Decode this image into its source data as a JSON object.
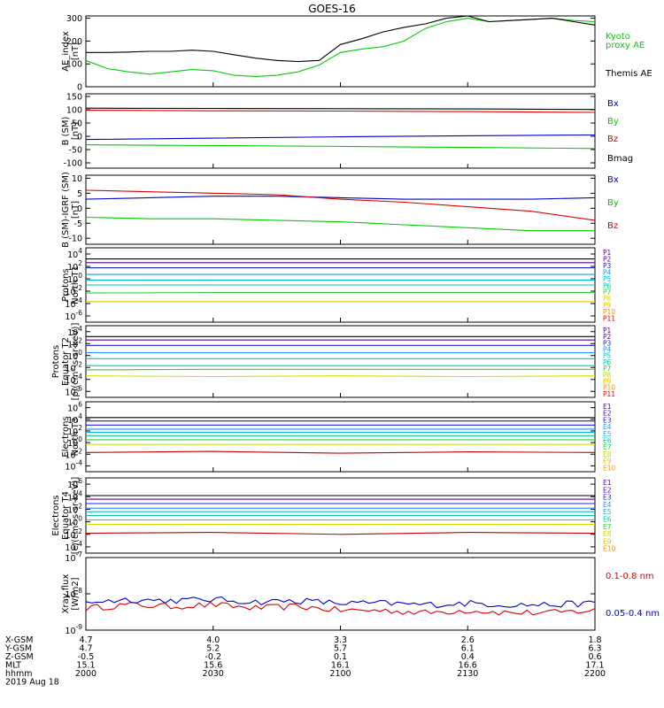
{
  "title": "GOES-16",
  "colors": {
    "black": "#000000",
    "blue": "#0000cc",
    "green": "#00cc00",
    "red": "#dd0000",
    "channels": [
      "#4b0082",
      "#5a0096",
      "#2020d0",
      "#1e90ff",
      "#00bcd4",
      "#00c8a0",
      "#32cd32",
      "#c8e000",
      "#e0c000",
      "#ff8c00",
      "#dd0000"
    ]
  },
  "panels": [
    {
      "id": "ae",
      "ylabel": [
        "AE_index",
        "[nT]"
      ],
      "yticks": [
        "300",
        "200",
        "100",
        "0"
      ],
      "legend": [
        {
          "text": "Kyoto",
          "color": "#00cc00"
        },
        {
          "text": "proxy AE",
          "color": "#00cc00"
        },
        {
          "text": "Themis AE",
          "color": "#000000"
        }
      ]
    },
    {
      "id": "bsm",
      "ylabel": [
        "B (SM)",
        "[nT]"
      ],
      "yticks": [
        "150",
        "100",
        "50",
        "0",
        "-50",
        "-100"
      ],
      "legend": [
        {
          "text": "Bx",
          "color": "#0000cc"
        },
        {
          "text": "By",
          "color": "#00cc00"
        },
        {
          "text": "Bz",
          "color": "#dd0000"
        },
        {
          "text": "Bmag",
          "color": "#000000"
        }
      ]
    },
    {
      "id": "bigrf",
      "ylabel": [
        "B (SM)-IGRF (SM)",
        "[nT]"
      ],
      "yticks": [
        "10",
        "5",
        "0",
        "-5",
        "-10"
      ],
      "legend": [
        {
          "text": "Bx",
          "color": "#0000cc"
        },
        {
          "text": "By",
          "color": "#00cc00"
        },
        {
          "text": "Bz",
          "color": "#dd0000"
        }
      ]
    },
    {
      "id": "pt1",
      "ylabel": [
        "Protons",
        "North T1"
      ],
      "ymant": [
        "10",
        "10",
        "10",
        "10",
        "10",
        "10"
      ],
      "yexp": [
        "4",
        "2",
        "0",
        "-2",
        "-4",
        "-6"
      ],
      "channels": [
        "P1",
        "P2",
        "P3",
        "P4",
        "P5",
        "P6",
        "P7",
        "P8",
        "P9",
        "P10",
        "P11"
      ]
    },
    {
      "id": "pt2",
      "ylabel": [
        "Protons",
        "Equator T2",
        "[p/(cm²-s-sr-keV)]"
      ],
      "ymant": [
        "10",
        "10",
        "10",
        "10",
        "10",
        "10"
      ],
      "yexp": [
        "4",
        "2",
        "0",
        "-2",
        "-4",
        "-6"
      ],
      "channels": [
        "P1",
        "P2",
        "P3",
        "P4",
        "P5",
        "P6",
        "P7",
        "P8",
        "P9",
        "P10",
        "P11"
      ]
    },
    {
      "id": "et3",
      "ylabel": [
        "Electrons",
        "North T3"
      ],
      "ymant": [
        "10",
        "10",
        "10",
        "10",
        "10",
        "10"
      ],
      "yexp": [
        "6",
        "4",
        "2",
        "0",
        "-2",
        "-4"
      ],
      "channels": [
        "E1",
        "E2",
        "E3",
        "E4",
        "E5",
        "E6",
        "E7",
        "E8",
        "E9",
        "E10"
      ]
    },
    {
      "id": "et4",
      "ylabel": [
        "Electrons",
        "Equator T4",
        "[e/(cm²-s-sr-keV)]"
      ],
      "ymant": [
        "10",
        "10",
        "10",
        "10",
        "10",
        "10"
      ],
      "yexp": [
        "6",
        "4",
        "2",
        "0",
        "-2",
        "-4"
      ],
      "channels": [
        "E1",
        "E2",
        "E3",
        "E4",
        "E5",
        "E6",
        "E7",
        "E8",
        "E9",
        "E10"
      ]
    },
    {
      "id": "xray",
      "ylabel": [
        "Xray flux",
        "[W/m2]"
      ],
      "ymant": [
        "10",
        "10",
        "10"
      ],
      "yexp": [
        "-7",
        "-8",
        "-9"
      ],
      "legend": [
        {
          "text": "0.1-0.8 nm",
          "color": "#dd0000"
        },
        {
          "text": "0.05-0.4 nm",
          "color": "#0000cc"
        }
      ]
    }
  ],
  "footer": {
    "rows": [
      {
        "label": "X-GSM",
        "values": [
          "4.7",
          "4.0",
          "3.3",
          "2.6",
          "1.8"
        ]
      },
      {
        "label": "Y-GSM",
        "values": [
          "4.7",
          "5.2",
          "5.7",
          "6.1",
          "6.3"
        ]
      },
      {
        "label": "Z-GSM",
        "values": [
          "-0.5",
          "-0.2",
          "0.1",
          "0.4",
          "0.6"
        ]
      },
      {
        "label": "MLT",
        "values": [
          "15.1",
          "15.6",
          "16.1",
          "16.6",
          "17.1"
        ]
      },
      {
        "label": "hhmm",
        "values": [
          "2000",
          "2030",
          "2100",
          "2130",
          "2200"
        ]
      }
    ],
    "date": "2019 Aug 18"
  },
  "chart_data": [
    {
      "type": "line",
      "title": "GOES-16",
      "ylabel": "AE_index [nT]",
      "ylim": [
        0,
        310
      ],
      "x": [
        "2000",
        "2005",
        "2010",
        "2015",
        "2020",
        "2025",
        "2030",
        "2035",
        "2040",
        "2045",
        "2050",
        "2055",
        "2100",
        "2105",
        "2110",
        "2115",
        "2120",
        "2125",
        "2130",
        "2135",
        "2140",
        "2145",
        "2150",
        "2155",
        "2200"
      ],
      "series": [
        {
          "name": "Kyoto proxy AE",
          "values": [
            115,
            80,
            65,
            55,
            65,
            75,
            70,
            50,
            45,
            50,
            65,
            95,
            150,
            165,
            175,
            200,
            255,
            285,
            300,
            285,
            290,
            295,
            300,
            290,
            285
          ]
        },
        {
          "name": "Themis AE",
          "values": [
            150,
            150,
            152,
            155,
            155,
            160,
            155,
            140,
            125,
            115,
            110,
            115,
            185,
            210,
            240,
            260,
            275,
            300,
            310,
            285,
            290,
            295,
            300,
            285,
            270
          ]
        }
      ]
    },
    {
      "type": "line",
      "ylabel": "B (SM) [nT]",
      "ylim": [
        -120,
        160
      ],
      "x": [
        "2000",
        "2030",
        "2100",
        "2130",
        "2200"
      ],
      "series": [
        {
          "name": "Bx",
          "values": [
            -12,
            -7,
            -2,
            2,
            5
          ]
        },
        {
          "name": "By",
          "values": [
            -32,
            -35,
            -38,
            -42,
            -46
          ]
        },
        {
          "name": "Bz",
          "values": [
            98,
            96,
            95,
            93,
            90
          ]
        },
        {
          "name": "Bmag",
          "values": [
            106,
            105,
            104,
            103,
            101
          ]
        }
      ]
    },
    {
      "type": "line",
      "ylabel": "B (SM)-IGRF (SM) [nT]",
      "ylim": [
        -12,
        11
      ],
      "x": [
        "2000",
        "2015",
        "2030",
        "2045",
        "2100",
        "2115",
        "2130",
        "2145",
        "2200"
      ],
      "series": [
        {
          "name": "Bx",
          "values": [
            3,
            3.5,
            4,
            4,
            3.5,
            3,
            3,
            3,
            3.5
          ]
        },
        {
          "name": "By",
          "values": [
            -3,
            -3.5,
            -3.5,
            -4,
            -4.5,
            -5.5,
            -6.5,
            -7.5,
            -7.5
          ]
        },
        {
          "name": "Bz",
          "values": [
            6,
            5.5,
            5,
            4.5,
            3,
            2,
            0.5,
            -1,
            -4
          ]
        }
      ]
    },
    {
      "type": "line",
      "ylabel": "Protons North T1",
      "yscale": "log",
      "ylim": [
        1e-07,
        100000.0
      ],
      "x": [
        "2000",
        "2030",
        "2100",
        "2130",
        "2200"
      ],
      "series": [
        {
          "name": "P1",
          "values": [
            1600,
            1600,
            1600,
            1600,
            1600
          ]
        },
        {
          "name": "P2",
          "values": [
            400,
            400,
            400,
            400,
            400
          ]
        },
        {
          "name": "P3",
          "values": [
            60,
            60,
            60,
            60,
            60
          ]
        },
        {
          "name": "P4",
          "values": [
            5,
            5,
            5,
            5,
            5
          ]
        },
        {
          "name": "P5",
          "values": [
            0.6,
            0.6,
            0.6,
            0.6,
            0.6
          ]
        },
        {
          "name": "P6",
          "values": [
            0.1,
            0.1,
            0.1,
            0.1,
            0.1
          ]
        },
        {
          "name": "P7",
          "values": [
            0.005,
            0.006,
            0.006,
            0.006,
            0.006
          ]
        },
        {
          "name": "P9",
          "values": [
            0.0002,
            0.0002,
            0.0002,
            0.0002,
            0.0002
          ]
        }
      ]
    },
    {
      "type": "line",
      "ylabel": "Protons Equator T2 [p/(cm²-s-sr-keV)]",
      "yscale": "log",
      "ylim": [
        1e-07,
        100000.0
      ],
      "x": [
        "2000",
        "2030",
        "2100",
        "2130",
        "2200"
      ],
      "series": [
        {
          "name": "P1",
          "values": [
            1500,
            1500,
            1500,
            1500,
            1500
          ]
        },
        {
          "name": "P2",
          "values": [
            400,
            400,
            400,
            400,
            400
          ]
        },
        {
          "name": "P3",
          "values": [
            50,
            50,
            50,
            50,
            50
          ]
        },
        {
          "name": "P4",
          "values": [
            3,
            3,
            3,
            3,
            3
          ]
        },
        {
          "name": "P5",
          "values": [
            0.3,
            0.3,
            0.3,
            0.3,
            0.3
          ]
        },
        {
          "name": "P6",
          "values": [
            0.02,
            0.02,
            0.02,
            0.02,
            0.02
          ]
        },
        {
          "name": "P7",
          "values": [
            0.004,
            0.005,
            0.005,
            0.005,
            0.005
          ]
        },
        {
          "name": "P8",
          "values": [
            0.0004,
            0.0003,
            0.0004,
            0.0003,
            0.0004
          ]
        }
      ]
    },
    {
      "type": "line",
      "ylabel": "Electrons North T3",
      "yscale": "log",
      "ylim": [
        1e-05,
        10000000.0
      ],
      "x": [
        "2000",
        "2030",
        "2100",
        "2130",
        "2200"
      ],
      "series": [
        {
          "name": "E1",
          "values": [
            20000,
            20000,
            20000,
            20000,
            20000
          ]
        },
        {
          "name": "E2",
          "values": [
            5000,
            5000,
            5000,
            5000,
            5000
          ]
        },
        {
          "name": "E3",
          "values": [
            1000,
            1000,
            1000,
            1000,
            1000
          ]
        },
        {
          "name": "E4",
          "values": [
            200,
            200,
            200,
            200,
            200
          ]
        },
        {
          "name": "E5",
          "values": [
            60,
            60,
            60,
            60,
            60
          ]
        },
        {
          "name": "E6",
          "values": [
            15,
            15,
            15,
            15,
            15
          ]
        },
        {
          "name": "E7",
          "values": [
            3,
            3,
            3,
            3,
            3
          ]
        },
        {
          "name": "E8",
          "values": [
            0.5,
            0.5,
            0.5,
            0.5,
            0.5
          ]
        },
        {
          "name": "E9",
          "values": [
            0.02,
            0.03,
            0.015,
            0.025,
            0.02
          ]
        }
      ]
    },
    {
      "type": "line",
      "ylabel": "Electrons Equator T4 [e/(cm²-s-sr-keV)]",
      "yscale": "log",
      "ylim": [
        1e-05,
        10000000.0
      ],
      "x": [
        "2000",
        "2030",
        "2100",
        "2130",
        "2200"
      ],
      "series": [
        {
          "name": "E1",
          "values": [
            15000,
            15000,
            15000,
            15000,
            15000
          ]
        },
        {
          "name": "E2",
          "values": [
            4000,
            4000,
            4000,
            4000,
            4000
          ]
        },
        {
          "name": "E3",
          "values": [
            800,
            800,
            800,
            800,
            800
          ]
        },
        {
          "name": "E4",
          "values": [
            150,
            150,
            150,
            150,
            150
          ]
        },
        {
          "name": "E5",
          "values": [
            40,
            40,
            40,
            40,
            40
          ]
        },
        {
          "name": "E6",
          "values": [
            10,
            10,
            10,
            10,
            10
          ]
        },
        {
          "name": "E7",
          "values": [
            2,
            2,
            2,
            2,
            2
          ]
        },
        {
          "name": "E8",
          "values": [
            0.4,
            0.4,
            0.4,
            0.4,
            0.4
          ]
        },
        {
          "name": "E9",
          "values": [
            0.015,
            0.02,
            0.01,
            0.02,
            0.015
          ]
        }
      ]
    },
    {
      "type": "line",
      "ylabel": "Xray flux [W/m2]",
      "yscale": "log",
      "ylim": [
        1e-09,
        1e-07
      ],
      "x": [
        "2000",
        "2010",
        "2020",
        "2030",
        "2040",
        "2050",
        "2100",
        "2110",
        "2120",
        "2130",
        "2140",
        "2150",
        "2200"
      ],
      "series": [
        {
          "name": "0.1-0.8 nm",
          "values": [
            4e-09,
            5e-09,
            4.5e-09,
            5e-09,
            4e-09,
            4.5e-09,
            3.5e-09,
            3.5e-09,
            3e-09,
            3.5e-09,
            3e-09,
            3e-09,
            3.5e-09
          ]
        },
        {
          "name": "0.05-0.4 nm",
          "values": [
            6e-09,
            7e-09,
            6.5e-09,
            7e-09,
            6e-09,
            6.5e-09,
            5.5e-09,
            5.5e-09,
            5e-09,
            5.5e-09,
            5e-09,
            5e-09,
            5.5e-09
          ]
        }
      ]
    }
  ]
}
